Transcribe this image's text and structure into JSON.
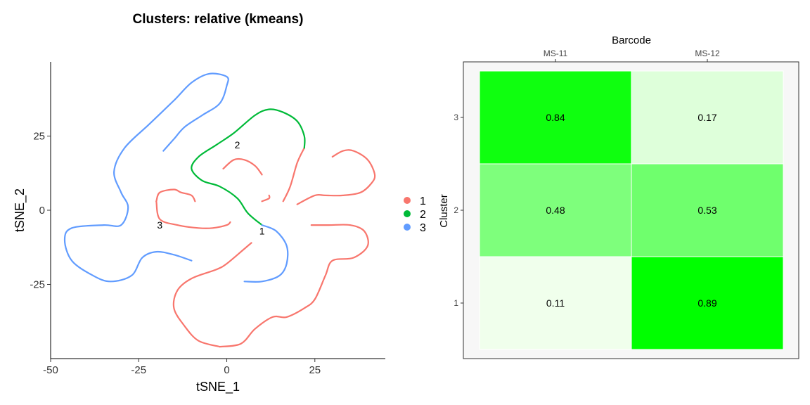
{
  "chart_data": [
    {
      "type": "scatter",
      "title": "Clusters: relative (kmeans)",
      "xlabel": "tSNE_1",
      "ylabel": "tSNE_2",
      "xlim": [
        -50,
        45
      ],
      "ylim": [
        -50,
        50
      ],
      "x_ticks": [
        -50,
        -25,
        0,
        25
      ],
      "y_ticks": [
        25,
        0,
        -25
      ],
      "grid": false,
      "legend_position": "right",
      "series": [
        {
          "name": "1",
          "color": "#F8766D",
          "paths": [
            [
              [
                -2,
                -46
              ],
              [
                -8,
                -44
              ],
              [
                -12,
                -39
              ],
              [
                -15,
                -33
              ],
              [
                -14,
                -27
              ],
              [
                -10,
                -23
              ],
              [
                -3,
                -20
              ],
              [
                0,
                -18
              ],
              [
                5,
                -13
              ],
              [
                7,
                -11
              ]
            ],
            [
              [
                -20,
                3
              ],
              [
                -19,
                6
              ],
              [
                -15,
                7
              ],
              [
                -13,
                6
              ],
              [
                -10,
                5
              ],
              [
                -9,
                3
              ]
            ],
            [
              [
                -20,
                3
              ],
              [
                -19,
                -3
              ],
              [
                -14,
                -5
              ],
              [
                -8,
                -6
              ],
              [
                -4,
                -6
              ],
              [
                0,
                -5
              ],
              [
                1,
                -4
              ]
            ],
            [
              [
                -2,
                -46
              ],
              [
                4,
                -45
              ],
              [
                8,
                -40
              ],
              [
                13,
                -36
              ],
              [
                17,
                -36
              ],
              [
                22,
                -33
              ],
              [
                25,
                -30
              ],
              [
                28,
                -22
              ],
              [
                30,
                -17
              ],
              [
                36,
                -16
              ],
              [
                40,
                -12
              ],
              [
                39,
                -7
              ],
              [
                35,
                -5
              ],
              [
                29,
                -5
              ],
              [
                24,
                -5
              ]
            ],
            [
              [
                20,
                2
              ],
              [
                25,
                5
              ],
              [
                28,
                5
              ],
              [
                33,
                5
              ],
              [
                38,
                6
              ],
              [
                41,
                9
              ],
              [
                42,
                12
              ],
              [
                40,
                17
              ],
              [
                36,
                20
              ],
              [
                33,
                20
              ],
              [
                30,
                18
              ]
            ],
            [
              [
                16,
                3
              ],
              [
                18,
                8
              ],
              [
                20,
                16
              ],
              [
                22,
                21
              ]
            ],
            [
              [
                -1,
                14
              ],
              [
                2,
                17
              ],
              [
                5,
                17
              ],
              [
                8,
                15
              ],
              [
                10,
                12
              ]
            ],
            [
              [
                10,
                3
              ],
              [
                12,
                4
              ],
              [
                12,
                5
              ]
            ]
          ]
        },
        {
          "name": "2",
          "color": "#00BA38",
          "paths": [
            [
              [
                10,
                -5
              ],
              [
                6,
                -1
              ],
              [
                3,
                4
              ],
              [
                -2,
                8
              ],
              [
                -7,
                10
              ],
              [
                -10,
                14
              ],
              [
                -8,
                18
              ],
              [
                -3,
                22
              ],
              [
                2,
                26
              ],
              [
                8,
                32
              ],
              [
                12,
                34
              ],
              [
                16,
                33
              ],
              [
                20,
                30
              ],
              [
                22,
                25
              ],
              [
                22,
                21
              ]
            ]
          ]
        },
        {
          "name": "3",
          "color": "#619CFF",
          "paths": [
            [
              [
                -18,
                20
              ],
              [
                -15,
                24
              ],
              [
                -12,
                28
              ],
              [
                -7,
                32
              ],
              [
                -2,
                36
              ],
              [
                0,
                42
              ],
              [
                0,
                45
              ],
              [
                -5,
                46
              ],
              [
                -10,
                43
              ],
              [
                -15,
                37
              ],
              [
                -22,
                29
              ],
              [
                -29,
                21
              ],
              [
                -32,
                13
              ],
              [
                -30,
                6
              ],
              [
                -28,
                1
              ],
              [
                -30,
                -5
              ],
              [
                -35,
                -5
              ],
              [
                -44,
                -6
              ],
              [
                -46,
                -10
              ],
              [
                -44,
                -17
              ],
              [
                -38,
                -22
              ],
              [
                -33,
                -24
              ],
              [
                -27,
                -22
              ],
              [
                -24,
                -16
              ],
              [
                -20,
                -14
              ],
              [
                -15,
                -15
              ],
              [
                -10,
                -17
              ]
            ],
            [
              [
                10,
                -5
              ],
              [
                14,
                -7
              ],
              [
                17,
                -12
              ],
              [
                17,
                -18
              ],
              [
                15,
                -22
              ],
              [
                10,
                -24
              ],
              [
                5,
                -24
              ]
            ]
          ]
        }
      ],
      "cluster_labels": [
        {
          "text": "2",
          "x": 3,
          "y": 22
        },
        {
          "text": "3",
          "x": -19,
          "y": -5
        },
        {
          "text": "1",
          "x": 10,
          "y": -7
        }
      ]
    },
    {
      "type": "heatmap",
      "xlabel": "Barcode",
      "ylabel": "Cluster",
      "x_categories": [
        "MS-11",
        "MS-12"
      ],
      "y_categories": [
        "3",
        "2",
        "1"
      ],
      "values": [
        [
          0.84,
          0.17
        ],
        [
          0.48,
          0.53
        ],
        [
          0.11,
          0.89
        ]
      ],
      "labels": [
        [
          "0.84",
          "0.17"
        ],
        [
          "0.48",
          "0.53"
        ],
        [
          "0.11",
          "0.89"
        ]
      ],
      "color_low": "#F0FFEC",
      "color_high": "#00FF00",
      "panel_background": "#F7F7F7",
      "legend": "none"
    }
  ]
}
